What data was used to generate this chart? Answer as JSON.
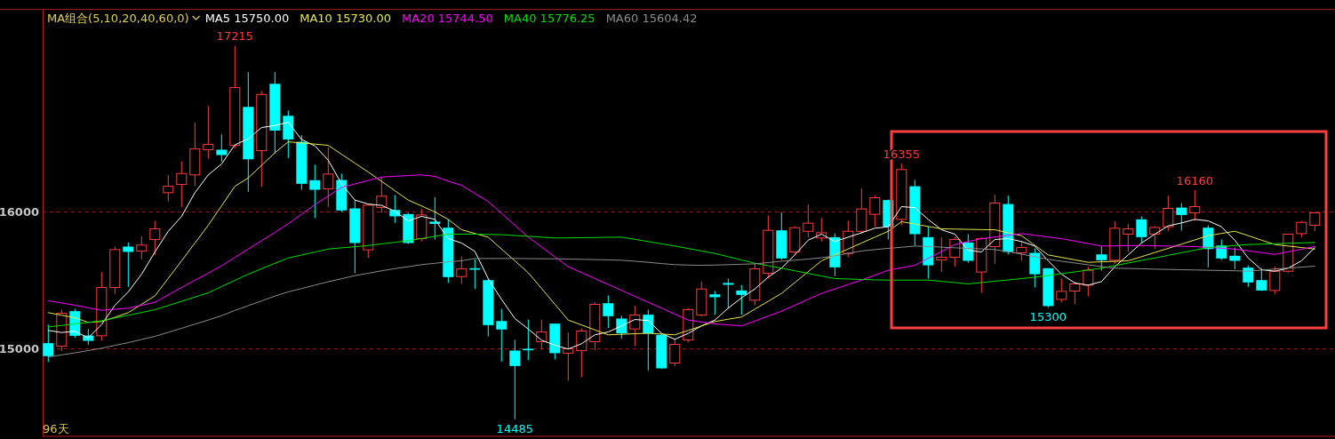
{
  "chart_data": {
    "type": "candlestick",
    "legend_title": "MA组合(5,10,20,40,60,0)",
    "legend": "top left",
    "grid": "y",
    "tick_labels": "y",
    "ylim": [
      14360,
      17480
    ],
    "yticks": [
      15000,
      16000
    ],
    "categories": [
      null,
      null,
      null,
      null,
      null,
      null,
      null,
      null,
      null,
      null,
      null,
      null,
      null,
      null,
      null,
      null,
      null,
      null,
      null,
      null,
      null,
      null,
      null,
      null,
      null,
      null,
      null,
      null,
      null,
      null,
      null,
      null,
      null,
      null,
      null,
      null,
      null,
      null,
      null,
      null,
      null,
      null,
      null,
      null,
      null,
      null,
      null,
      null,
      null,
      null,
      null,
      null,
      null,
      null,
      null,
      null,
      null,
      null,
      null,
      null,
      null,
      null,
      null,
      null,
      null,
      null,
      null,
      null,
      null,
      null,
      null,
      null,
      null,
      null,
      null,
      null,
      null,
      null,
      null,
      null,
      null,
      null,
      null,
      null,
      null,
      null,
      null,
      null,
      null,
      null,
      null,
      null,
      null,
      null,
      null,
      null
    ],
    "ohlc": [
      [
        15041,
        15177,
        14903,
        14946
      ],
      [
        15019,
        15286,
        14983,
        15260
      ],
      [
        15275,
        15292,
        15080,
        15095
      ],
      [
        15097,
        15145,
        15030,
        15058
      ],
      [
        15095,
        15561,
        15058,
        15448
      ],
      [
        15448,
        15747,
        15400,
        15725
      ],
      [
        15747,
        15777,
        15452,
        15708
      ],
      [
        15714,
        15822,
        15654,
        15758
      ],
      [
        15799,
        15935,
        15686,
        15877
      ],
      [
        16141,
        16271,
        16076,
        16188
      ],
      [
        16201,
        16368,
        16037,
        16281
      ],
      [
        16271,
        16654,
        16190,
        16461
      ],
      [
        16455,
        16775,
        16390,
        16494
      ],
      [
        16455,
        16567,
        16368,
        16416
      ],
      [
        16487,
        17215,
        16465,
        16909
      ],
      [
        16768,
        17022,
        16147,
        16385
      ],
      [
        16448,
        16883,
        16184,
        16859
      ],
      [
        16937,
        17022,
        16426,
        16595
      ],
      [
        16703,
        16742,
        16394,
        16530
      ],
      [
        16513,
        16563,
        16162,
        16206
      ],
      [
        16232,
        16346,
        15957,
        16162
      ],
      [
        16169,
        16472,
        16037,
        16277
      ],
      [
        16234,
        16281,
        16000,
        16011
      ],
      [
        16026,
        16087,
        15552,
        15773
      ],
      [
        15723,
        16058,
        15665,
        16050
      ],
      [
        16032,
        16255,
        15994,
        16115
      ],
      [
        16015,
        16123,
        15920,
        15968
      ],
      [
        15985,
        15994,
        15766,
        15773
      ],
      [
        15805,
        16022,
        15784,
        15978
      ],
      [
        15929,
        16108,
        15799,
        15913
      ],
      [
        15885,
        15946,
        15481,
        15524
      ],
      [
        15528,
        15675,
        15474,
        15584
      ],
      [
        15589,
        15654,
        15437,
        15578
      ],
      [
        15502,
        15513,
        15091,
        15173
      ],
      [
        15203,
        15292,
        14907,
        15141
      ],
      [
        14987,
        15065,
        14485,
        14874
      ],
      [
        15000,
        15214,
        14918,
        14989
      ],
      [
        15052,
        15214,
        14994,
        15123
      ],
      [
        15184,
        15184,
        14922,
        14968
      ],
      [
        14968,
        15119,
        14766,
        15000
      ],
      [
        14987,
        15149,
        14792,
        15130
      ],
      [
        15052,
        15340,
        14987,
        15325
      ],
      [
        15333,
        15390,
        15152,
        15238
      ],
      [
        15221,
        15242,
        15074,
        15113
      ],
      [
        15145,
        15314,
        15019,
        15247
      ],
      [
        15249,
        15286,
        14842,
        15113
      ],
      [
        15102,
        15113,
        14853,
        14857
      ],
      [
        14896,
        15069,
        14874,
        15032
      ],
      [
        15065,
        15297,
        15048,
        15286
      ],
      [
        15247,
        15491,
        15236,
        15437
      ],
      [
        15398,
        15422,
        15249,
        15377
      ],
      [
        15481,
        15513,
        15292,
        15468
      ],
      [
        15426,
        15465,
        15249,
        15394
      ],
      [
        15355,
        15628,
        15318,
        15584
      ],
      [
        15552,
        15974,
        15513,
        15866
      ],
      [
        15866,
        15996,
        15649,
        15660
      ],
      [
        15708,
        15896,
        15682,
        15885
      ],
      [
        15859,
        16054,
        15816,
        15918
      ],
      [
        15810,
        15957,
        15784,
        15848
      ],
      [
        15816,
        15844,
        15530,
        15595
      ],
      [
        15697,
        15935,
        15669,
        15859
      ],
      [
        15859,
        16173,
        15838,
        16022
      ],
      [
        15983,
        16119,
        15892,
        16104
      ],
      [
        16087,
        16091,
        15799,
        15892
      ],
      [
        15946,
        16355,
        15903,
        16310
      ],
      [
        16188,
        16234,
        15755,
        15838
      ],
      [
        15816,
        15896,
        15513,
        15610
      ],
      [
        15649,
        15816,
        15561,
        15669
      ],
      [
        15669,
        15816,
        15600,
        15799
      ],
      [
        15777,
        15838,
        15628,
        15643
      ],
      [
        15561,
        15816,
        15409,
        15805
      ],
      [
        15747,
        16126,
        15621,
        16065
      ],
      [
        16058,
        16119,
        15690,
        15708
      ],
      [
        15701,
        15784,
        15643,
        15740
      ],
      [
        15701,
        15734,
        15448,
        15545
      ],
      [
        15589,
        15589,
        15300,
        15312
      ],
      [
        15361,
        15513,
        15340,
        15420
      ],
      [
        15422,
        15491,
        15325,
        15474
      ],
      [
        15465,
        15600,
        15383,
        15574
      ],
      [
        15690,
        15751,
        15570,
        15647
      ],
      [
        15647,
        15931,
        15621,
        15881
      ],
      [
        15838,
        15913,
        15708,
        15877
      ],
      [
        15946,
        15968,
        15773,
        15816
      ],
      [
        15838,
        15898,
        15729,
        15887
      ],
      [
        15892,
        16119,
        15859,
        16026
      ],
      [
        16032,
        16065,
        15864,
        15978
      ],
      [
        15994,
        16160,
        15935,
        16039
      ],
      [
        15885,
        15903,
        15595,
        15729
      ],
      [
        15755,
        15799,
        15649,
        15660
      ],
      [
        15680,
        15740,
        15582,
        15643
      ],
      [
        15593,
        15610,
        15452,
        15485
      ],
      [
        15502,
        15589,
        15422,
        15426
      ],
      [
        15426,
        15600,
        15400,
        15567
      ],
      [
        15567,
        15838,
        15556,
        15838
      ],
      [
        15842,
        15935,
        15816,
        15924
      ],
      [
        15903,
        15994,
        15859,
        15994
      ]
    ],
    "colors": [
      "#00ffff",
      "#ff3c3c",
      "#00ffff",
      "#00ffff",
      "#ff3c3c",
      "#ff3c3c",
      "#00ffff",
      "#ff3c3c",
      "#ff3c3c",
      "#ff3c3c",
      "#ff3c3c",
      "#ff3c3c",
      "#ff3c3c",
      "#00ffff",
      "#ff3c3c",
      "#00ffff",
      "#ff3c3c",
      "#00ffff",
      "#00ffff",
      "#00ffff",
      "#00ffff",
      "#ff3c3c",
      "#00ffff",
      "#00ffff",
      "#ff3c3c",
      "#ff3c3c",
      "#00ffff",
      "#00ffff",
      "#ff3c3c",
      "#00ffff",
      "#00ffff",
      "#ff3c3c",
      "#00ffff",
      "#00ffff",
      "#00ffff",
      "#00ffff",
      "#00ffff",
      "#ff3c3c",
      "#00ffff",
      "#ff3c3c",
      "#ff3c3c",
      "#ff3c3c",
      "#00ffff",
      "#00ffff",
      "#ff3c3c",
      "#00ffff",
      "#00ffff",
      "#ff3c3c",
      "#ff3c3c",
      "#ff3c3c",
      "#00ffff",
      "#00ffff",
      "#00ffff",
      "#ff3c3c",
      "#ff3c3c",
      "#00ffff",
      "#ff3c3c",
      "#ff3c3c",
      "#ff3c3c",
      "#00ffff",
      "#ff3c3c",
      "#ff3c3c",
      "#ff3c3c",
      "#00ffff",
      "#ff3c3c",
      "#00ffff",
      "#00ffff",
      "#ff3c3c",
      "#ff3c3c",
      "#00ffff",
      "#ff3c3c",
      "#ff3c3c",
      "#00ffff",
      "#ff3c3c",
      "#00ffff",
      "#00ffff",
      "#ff3c3c",
      "#ff3c3c",
      "#ff3c3c",
      "#00ffff",
      "#ff3c3c",
      "#ff3c3c",
      "#00ffff",
      "#ff3c3c",
      "#ff3c3c",
      "#00ffff",
      "#ff3c3c",
      "#00ffff",
      "#00ffff",
      "#00ffff",
      "#00ffff",
      "#00ffff",
      "#ff3c3c",
      "#ff3c3c",
      "#ff3c3c",
      "#ff3c3c"
    ],
    "series": [
      {
        "type": "line",
        "name": "MA5 15750.00",
        "color": "#ffffff",
        "values": [
          15134,
          15119,
          15128,
          15080,
          15177,
          15318,
          15416,
          15545,
          15708,
          15859,
          15968,
          16141,
          16271,
          16351,
          16491,
          16535,
          16617,
          16632,
          16656,
          16530,
          16483,
          16379,
          16206,
          16087,
          16058,
          16048,
          16006,
          15935,
          15968,
          15946,
          15805,
          15773,
          15712,
          15513,
          15361,
          15221,
          15145,
          15063,
          15026,
          14998,
          15037,
          15102,
          15123,
          15167,
          15214,
          15206,
          15113,
          15069,
          15113,
          15167,
          15210,
          15297,
          15372,
          15437,
          15524,
          15589,
          15686,
          15794,
          15838,
          15784,
          15816,
          15848,
          15881,
          15892,
          16039,
          16032,
          15946,
          15870,
          15838,
          15719,
          15708,
          15799,
          15805,
          15784,
          15751,
          15643,
          15545,
          15481,
          15465,
          15491,
          15600,
          15686,
          15773,
          15838,
          15898,
          15920,
          15946,
          15935,
          15892,
          15794,
          15664,
          15578,
          15567,
          15589,
          15643,
          15740
        ]
      },
      {
        "type": "line",
        "name": "MA10 15730.00",
        "color": "#e6e64c",
        "values": [
          15264,
          15245,
          15227,
          15193,
          15199,
          15230,
          15264,
          15325,
          15387,
          15515,
          15643,
          15773,
          15903,
          16045,
          16188,
          16249,
          16341,
          16433,
          16513,
          16504,
          16496,
          16487,
          16422,
          16357,
          16292,
          16224,
          16155,
          16087,
          16044,
          16000,
          15946,
          15870,
          15843,
          15816,
          15729,
          15643,
          15556,
          15441,
          15325,
          15210,
          15174,
          15138,
          15102,
          15106,
          15110,
          15113,
          15108,
          15102,
          15134,
          15167,
          15199,
          15216,
          15232,
          15290,
          15347,
          15405,
          15484,
          15564,
          15643,
          15686,
          15730,
          15773,
          15816,
          15859,
          15929,
          15912,
          15894,
          15877,
          15875,
          15873,
          15871,
          15870,
          15848,
          15827,
          15756,
          15686,
          15668,
          15650,
          15632,
          15636,
          15639,
          15643,
          15673,
          15704,
          15734,
          15765,
          15796,
          15827,
          15843,
          15859,
          15827,
          15794,
          15762,
          15751,
          15740,
          15729
        ]
      },
      {
        "type": "line",
        "name": "MA20 15744.50",
        "color": "#ff00ff",
        "values": [
          15351,
          15335,
          15318,
          15300,
          15281,
          15289,
          15297,
          15318,
          15340,
          15394,
          15448,
          15501,
          15553,
          15606,
          15668,
          15729,
          15790,
          15851,
          15913,
          15984,
          16054,
          16117,
          16180,
          16205,
          16230,
          16255,
          16261,
          16266,
          16271,
          16260,
          16225,
          16195,
          16135,
          16076,
          15990,
          15903,
          15816,
          15744,
          15672,
          15600,
          15557,
          15513,
          15470,
          15427,
          15383,
          15340,
          15297,
          15253,
          15210,
          15196,
          15182,
          15175,
          15167,
          15203,
          15239,
          15275,
          15318,
          15362,
          15405,
          15437,
          15470,
          15502,
          15538,
          15574,
          15592,
          15610,
          15661,
          15711,
          15762,
          15784,
          15805,
          15817,
          15830,
          15842,
          15830,
          15817,
          15805,
          15787,
          15769,
          15751,
          15752,
          15754,
          15755,
          15753,
          15751,
          15749,
          15747,
          15741,
          15735,
          15729,
          15716,
          15703,
          15690,
          15709,
          15728,
          15747
        ]
      },
      {
        "type": "line",
        "name": "MA40 15776.25",
        "color": "#00e000",
        "values": [
          15160,
          15170,
          15182,
          15193,
          15205,
          15225,
          15245,
          15265,
          15286,
          15316,
          15347,
          15378,
          15409,
          15455,
          15500,
          15545,
          15585,
          15625,
          15664,
          15685,
          15707,
          15729,
          15738,
          15746,
          15755,
          15767,
          15778,
          15790,
          15806,
          15822,
          15838,
          15838,
          15838,
          15836,
          15834,
          15828,
          15822,
          15816,
          15810,
          15811,
          15812,
          15813,
          15815,
          15816,
          15800,
          15784,
          15767,
          15751,
          15733,
          15715,
          15697,
          15673,
          15649,
          15625,
          15607,
          15589,
          15570,
          15551,
          15532,
          15513,
          15510,
          15507,
          15504,
          15502,
          15502,
          15502,
          15502,
          15493,
          15484,
          15474,
          15484,
          15494,
          15503,
          15513,
          15524,
          15535,
          15549,
          15562,
          15576,
          15589,
          15608,
          15627,
          15646,
          15664,
          15683,
          15702,
          15721,
          15740,
          15747,
          15755,
          15762,
          15765,
          15768,
          15771,
          15774,
          15777
        ]
      },
      {
        "type": "line",
        "name": "MA60 15604.42",
        "color": "#8c8c8c",
        "values": [
          14940,
          14955,
          14970,
          14987,
          15004,
          15025,
          15045,
          15068,
          15091,
          15120,
          15150,
          15180,
          15210,
          15242,
          15280,
          15315,
          15350,
          15385,
          15416,
          15440,
          15465,
          15490,
          15512,
          15535,
          15552,
          15570,
          15586,
          15600,
          15615,
          15625,
          15635,
          15643,
          15660,
          15660,
          15660,
          15660,
          15659,
          15658,
          15658,
          15656,
          15654,
          15652,
          15650,
          15647,
          15640,
          15632,
          15623,
          15615,
          15612,
          15610,
          15612,
          15615,
          15618,
          15621,
          15630,
          15640,
          15648,
          15656,
          15665,
          15680,
          15698,
          15715,
          15725,
          15734,
          15742,
          15751,
          15747,
          15743,
          15738,
          15734,
          15730,
          15725,
          15710,
          15692,
          15673,
          15654,
          15640,
          15627,
          15614,
          15601,
          15589,
          15587,
          15585,
          15582,
          15580,
          15578,
          15576,
          15574,
          15572,
          15570,
          15567,
          15575,
          15583,
          15590,
          15597,
          15604
        ]
      }
    ],
    "annotations": [
      {
        "text": "17215",
        "y": 17215
      },
      {
        "text": "14485",
        "y": 14485
      },
      {
        "text": "16355",
        "y": 16355
      },
      {
        "text": "15300",
        "y": 15300
      },
      {
        "text": "16160",
        "y": 16160
      },
      "96天"
    ]
  }
}
